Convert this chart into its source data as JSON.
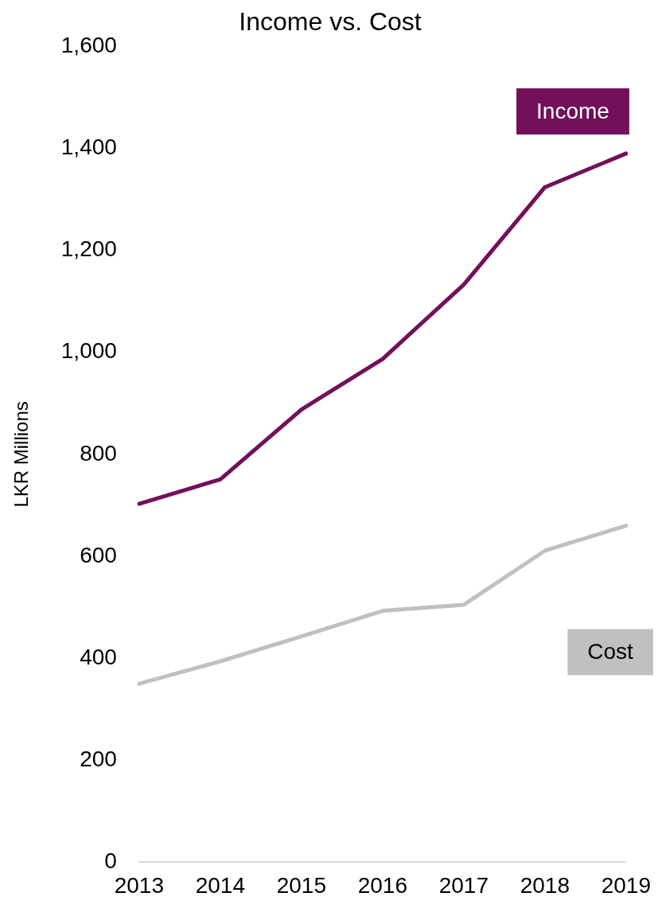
{
  "chart_data": {
    "type": "line",
    "title": "Income vs. Cost",
    "ylabel": "LKR Millions",
    "categories": [
      "2013",
      "2014",
      "2015",
      "2016",
      "2017",
      "2018",
      "2019"
    ],
    "series": [
      {
        "name": "Income",
        "color": "#72105a",
        "values": [
          703,
          751,
          888,
          987,
          1133,
          1324,
          1390
        ]
      },
      {
        "name": "Cost",
        "color": "#c0c0c0",
        "values": [
          350,
          394,
          443,
          493,
          505,
          611,
          660
        ]
      }
    ],
    "ylim": [
      0,
      1600
    ],
    "yticks": [
      0,
      200,
      400,
      600,
      800,
      {
        "value": 1000,
        "label": "1,000"
      },
      {
        "value": 1200,
        "label": "1,200"
      },
      {
        "value": 1400,
        "label": "1,400"
      },
      {
        "value": 1600,
        "label": "1,600"
      }
    ],
    "grid": false,
    "legend": false,
    "marker": "none",
    "line_style": "solid"
  }
}
